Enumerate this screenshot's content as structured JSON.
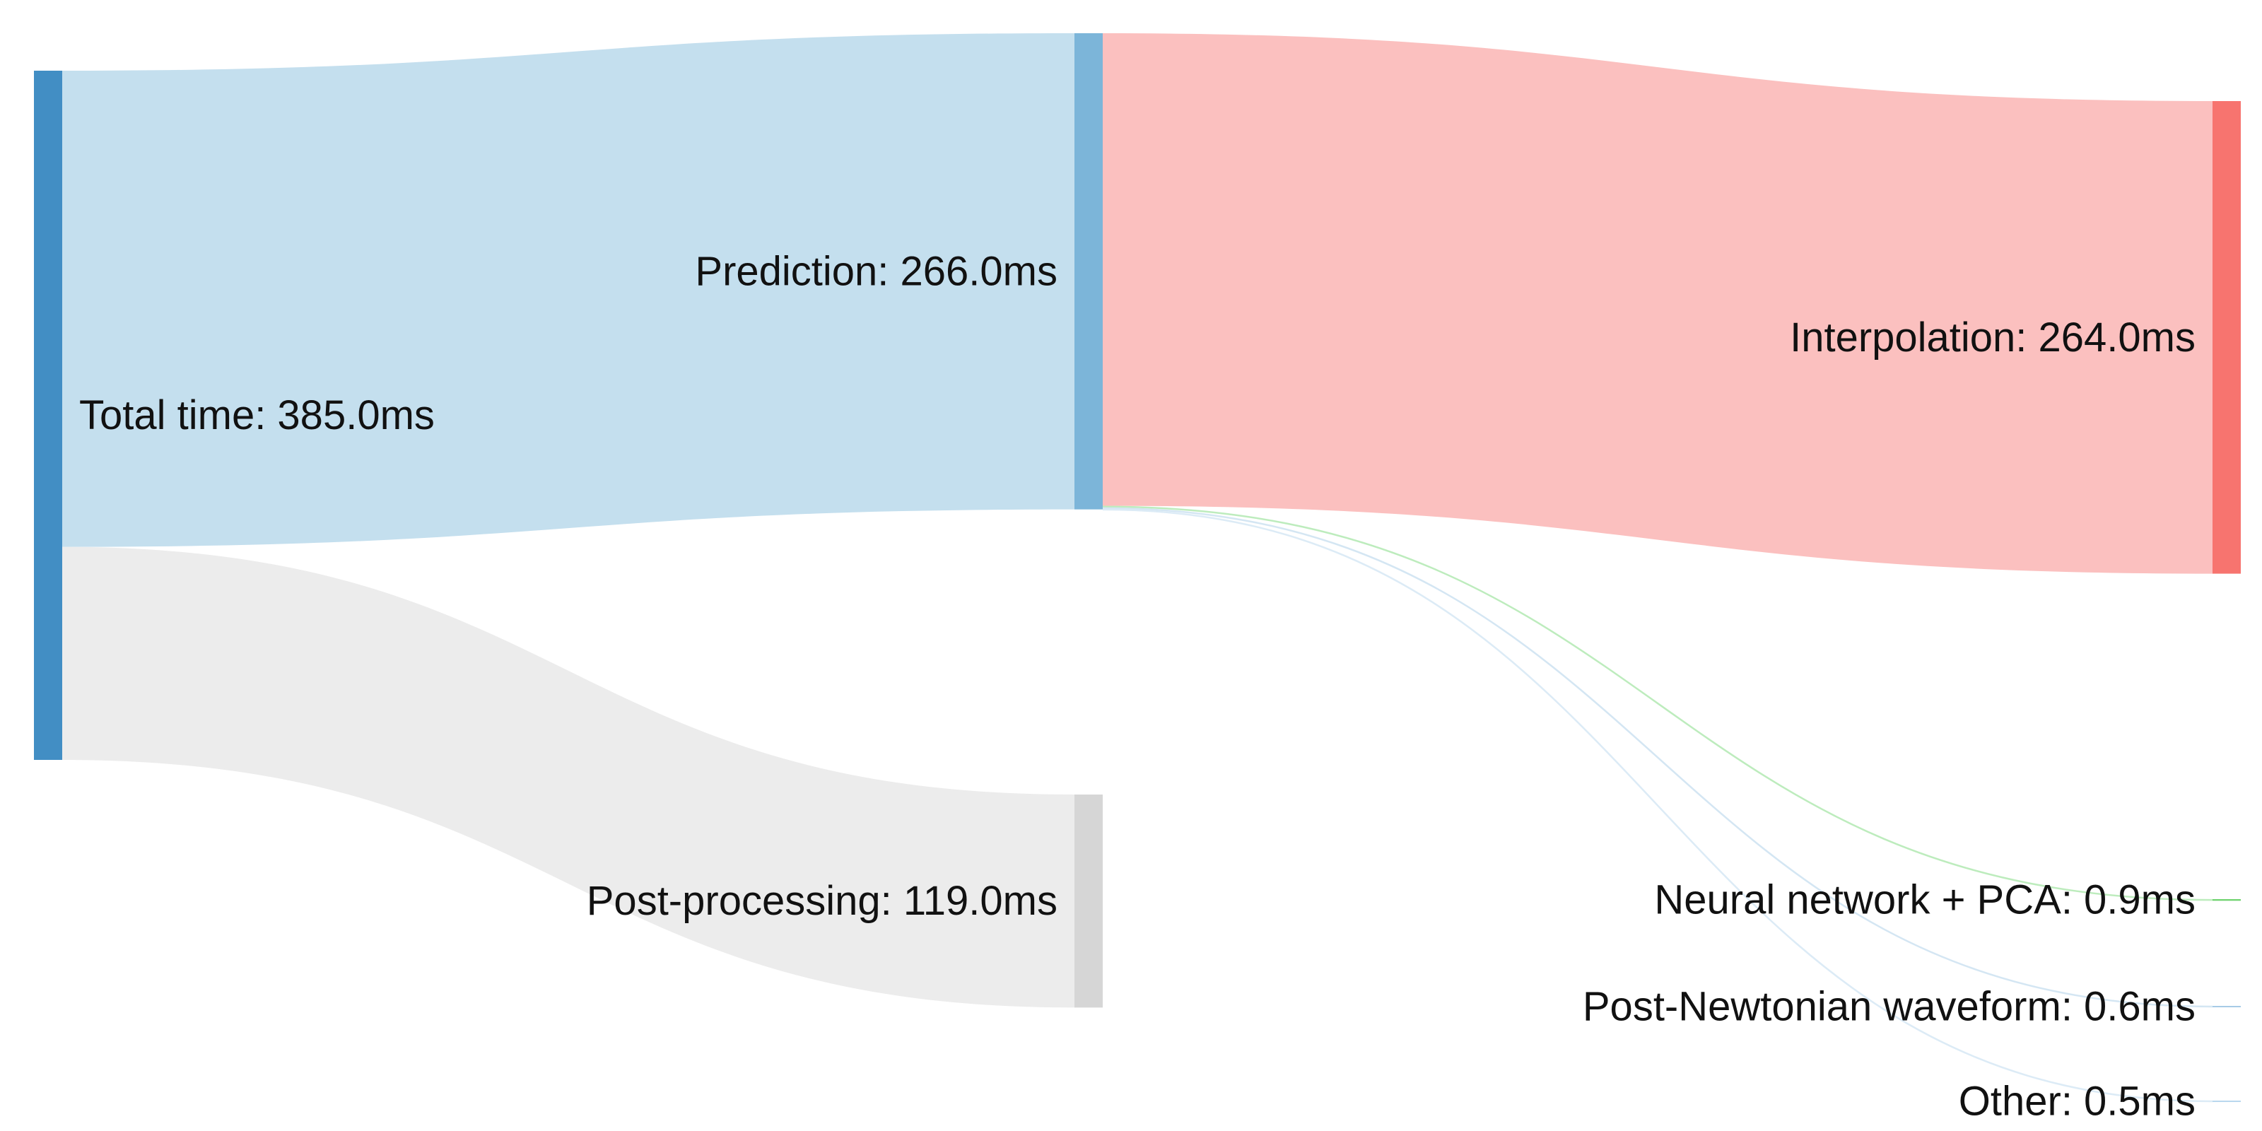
{
  "chart_data": {
    "type": "sankey",
    "unit": "ms",
    "colors": {
      "total": "#428ec4",
      "prediction_node": "#7cb5d9",
      "prediction_link": "#c4dfee",
      "postproc_node": "#d6d6d6",
      "postproc_link": "#ececec",
      "interp_node": "#f7746f",
      "interp_link": "#fbc0bf",
      "nn_node": "#6fd36f",
      "nn_link": "#bdecbd",
      "pn_node": "#a7cbe6",
      "pn_link": "#d4e6f3",
      "other_node": "#b9d8ee",
      "other_link": "#dcebf6"
    },
    "nodes": [
      {
        "id": "total",
        "label": "Total time: 385.0ms",
        "value": 385.0,
        "level": 0
      },
      {
        "id": "prediction",
        "label": "Prediction: 266.0ms",
        "value": 266.0,
        "level": 1
      },
      {
        "id": "postprocessing",
        "label": "Post-processing: 119.0ms",
        "value": 119.0,
        "level": 1
      },
      {
        "id": "interpolation",
        "label": "Interpolation: 264.0ms",
        "value": 264.0,
        "level": 2
      },
      {
        "id": "nn_pca",
        "label": "Neural network + PCA: 0.9ms",
        "value": 0.9,
        "level": 2
      },
      {
        "id": "pn_waveform",
        "label": "Post-Newtonian waveform: 0.6ms",
        "value": 0.6,
        "level": 2
      },
      {
        "id": "other",
        "label": "Other: 0.5ms",
        "value": 0.5,
        "level": 2
      }
    ],
    "links": [
      {
        "source": "total",
        "target": "prediction",
        "value": 266.0
      },
      {
        "source": "total",
        "target": "postprocessing",
        "value": 119.0
      },
      {
        "source": "prediction",
        "target": "interpolation",
        "value": 264.0
      },
      {
        "source": "prediction",
        "target": "nn_pca",
        "value": 0.9
      },
      {
        "source": "prediction",
        "target": "pn_waveform",
        "value": 0.6
      },
      {
        "source": "prediction",
        "target": "other",
        "value": 0.5
      }
    ]
  }
}
